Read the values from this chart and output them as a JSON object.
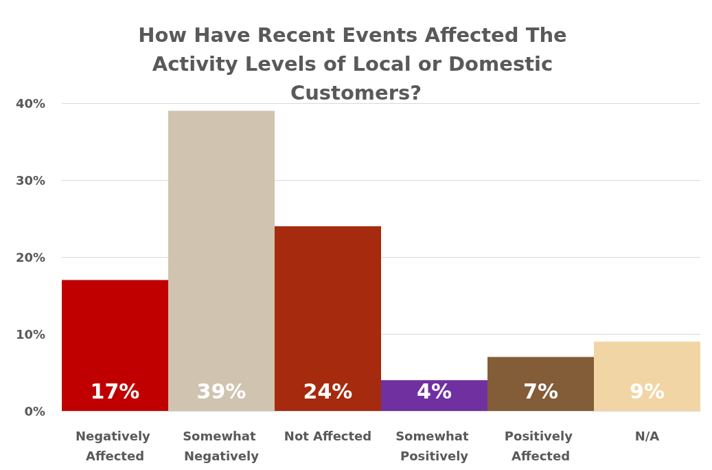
{
  "chart_data": {
    "type": "bar",
    "title": "How Have Recent Events Affected The Activity Levels of Local or Domestic Customers?",
    "categories": [
      "Negatively Affected",
      "Somewhat Negatively",
      "Not Affected",
      "Somewhat Positively",
      "Positively Affected",
      "N/A"
    ],
    "values": [
      17,
      39,
      24,
      4,
      7,
      9
    ],
    "colors": [
      "#c00000",
      "#d0c3b0",
      "#a52a0e",
      "#7030a0",
      "#835c38",
      "#f2d5a4"
    ],
    "value_labels": [
      "17%",
      "39%",
      "24%",
      "4%",
      "7%",
      "9%"
    ],
    "ylim": [
      0,
      40
    ],
    "yticks": [
      {
        "value": 0,
        "label": "0%"
      },
      {
        "value": 10,
        "label": "10%"
      },
      {
        "value": 20,
        "label": "20%"
      },
      {
        "value": 30,
        "label": "30%"
      },
      {
        "value": 40,
        "label": "40%"
      }
    ],
    "grid": "y",
    "legend": false
  }
}
